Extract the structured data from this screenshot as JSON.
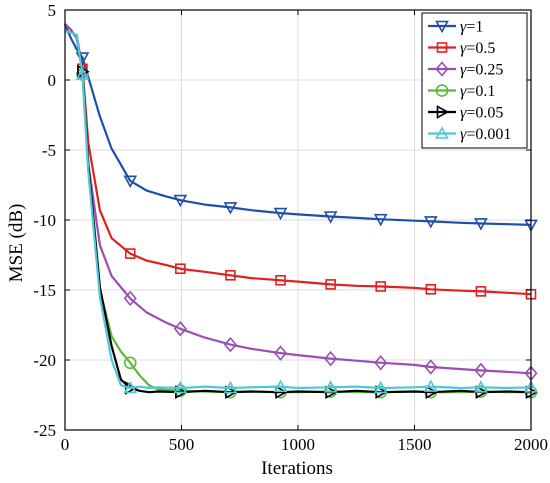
{
  "chart_data": {
    "type": "line",
    "xlabel": "Iterations",
    "ylabel": "MSE (dB)",
    "xlim": [
      0,
      2000
    ],
    "ylim": [
      -25,
      5
    ],
    "xticks": [
      0,
      500,
      1000,
      1500,
      2000
    ],
    "yticks": [
      5,
      0,
      -5,
      -10,
      -15,
      -20,
      -25
    ],
    "grid": true,
    "legend_position": "top-right",
    "legend_prefix": "γ",
    "series": [
      {
        "name": "=1",
        "color": "#1f4fa8",
        "marker": "triangle-down",
        "x": [
          0,
          25,
          50,
          75,
          100,
          150,
          200,
          280,
          350,
          430,
          500,
          600,
          710,
          800,
          920,
          1000,
          1140,
          1250,
          1360,
          1500,
          1570,
          1700,
          1790,
          1900,
          2000
        ],
        "y": [
          4.0,
          3.0,
          2.2,
          1.6,
          0.2,
          -2.6,
          -4.9,
          -7.2,
          -7.9,
          -8.3,
          -8.6,
          -8.9,
          -9.1,
          -9.3,
          -9.5,
          -9.6,
          -9.75,
          -9.85,
          -9.95,
          -10.05,
          -10.1,
          -10.2,
          -10.25,
          -10.3,
          -10.35
        ]
      },
      {
        "name": "=0.5",
        "color": "#e02020",
        "marker": "square",
        "x": [
          0,
          25,
          50,
          75,
          100,
          150,
          200,
          280,
          350,
          430,
          500,
          600,
          710,
          800,
          920,
          1000,
          1140,
          1250,
          1360,
          1500,
          1570,
          1700,
          1790,
          1900,
          2000
        ],
        "y": [
          4.0,
          3.6,
          3.0,
          0.8,
          -4.5,
          -9.3,
          -11.3,
          -12.4,
          -12.9,
          -13.2,
          -13.5,
          -13.7,
          -13.95,
          -14.15,
          -14.3,
          -14.4,
          -14.6,
          -14.7,
          -14.75,
          -14.85,
          -14.95,
          -15.05,
          -15.1,
          -15.2,
          -15.3
        ]
      },
      {
        "name": "=0.25",
        "color": "#9b4fb0",
        "marker": "diamond",
        "x": [
          0,
          25,
          50,
          75,
          100,
          150,
          200,
          280,
          350,
          430,
          500,
          600,
          710,
          800,
          920,
          1000,
          1140,
          1250,
          1360,
          1500,
          1570,
          1700,
          1790,
          1900,
          2000
        ],
        "y": [
          4.0,
          3.6,
          3.0,
          0.5,
          -6.0,
          -11.8,
          -14.0,
          -15.6,
          -16.6,
          -17.3,
          -17.8,
          -18.4,
          -18.9,
          -19.2,
          -19.5,
          -19.65,
          -19.9,
          -20.05,
          -20.2,
          -20.35,
          -20.5,
          -20.65,
          -20.75,
          -20.85,
          -20.95
        ]
      },
      {
        "name": "=0.1",
        "color": "#5cb83a",
        "marker": "circle",
        "x": [
          0,
          25,
          50,
          75,
          100,
          150,
          200,
          240,
          280,
          320,
          360,
          400,
          500,
          600,
          710,
          800,
          920,
          1000,
          1140,
          1250,
          1360,
          1500,
          1570,
          1700,
          1790,
          1900,
          2000
        ],
        "y": [
          3.5,
          3.4,
          3.2,
          0.4,
          -6.5,
          -15.0,
          -18.3,
          -19.4,
          -20.2,
          -21.1,
          -21.8,
          -22.1,
          -22.2,
          -22.25,
          -22.3,
          -22.25,
          -22.3,
          -22.3,
          -22.25,
          -22.3,
          -22.3,
          -22.25,
          -22.3,
          -22.3,
          -22.25,
          -22.3,
          -22.3
        ]
      },
      {
        "name": "=0.05",
        "color": "#000000",
        "marker": "triangle-right",
        "x": [
          0,
          25,
          50,
          75,
          100,
          150,
          200,
          240,
          280,
          320,
          360,
          400,
          500,
          600,
          710,
          800,
          920,
          1000,
          1140,
          1250,
          1360,
          1500,
          1570,
          1700,
          1790,
          1900,
          2000
        ],
        "y": [
          3.5,
          3.4,
          3.2,
          0.6,
          -6.0,
          -14.8,
          -19.0,
          -21.4,
          -22.0,
          -22.2,
          -22.3,
          -22.25,
          -22.3,
          -22.2,
          -22.3,
          -22.25,
          -22.3,
          -22.25,
          -22.3,
          -22.2,
          -22.3,
          -22.25,
          -22.3,
          -22.2,
          -22.3,
          -22.25,
          -22.3
        ]
      },
      {
        "name": "=0.001",
        "color": "#4fc8d8",
        "marker": "triangle-up",
        "x": [
          0,
          25,
          50,
          75,
          100,
          150,
          200,
          240,
          280,
          320,
          360,
          400,
          500,
          600,
          710,
          800,
          920,
          1000,
          1140,
          1250,
          1360,
          1500,
          1570,
          1700,
          1790,
          1900,
          2000
        ],
        "y": [
          3.5,
          3.4,
          3.2,
          0.4,
          -6.5,
          -15.5,
          -20.0,
          -21.8,
          -22.0,
          -21.9,
          -22.0,
          -21.95,
          -22.0,
          -21.9,
          -22.0,
          -21.95,
          -21.9,
          -22.0,
          -21.95,
          -21.9,
          -22.0,
          -21.95,
          -21.9,
          -22.0,
          -21.95,
          -22.0,
          -21.95
        ]
      }
    ]
  }
}
